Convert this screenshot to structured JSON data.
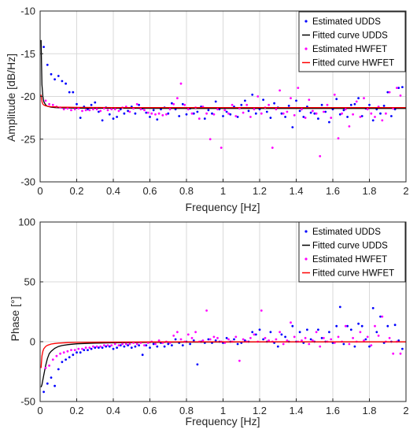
{
  "chart_data": [
    {
      "type": "scatter",
      "xlabel": "Frequency [Hz]",
      "ylabel": "Amplitude [dB/Hz]",
      "xlim": [
        0,
        2
      ],
      "ylim": [
        -30,
        -10
      ],
      "xticks": [
        0,
        0.2,
        0.4,
        0.6,
        0.8,
        1,
        1.2,
        1.4,
        1.6,
        1.8,
        2
      ],
      "yticks": [
        -30,
        -25,
        -20,
        -15,
        -10
      ],
      "grid": true,
      "legend": "top-right",
      "series": [
        {
          "name": "Estimated UDDS",
          "kind": "points",
          "color": "#0000ff",
          "x": [
            0.02,
            0.04,
            0.06,
            0.08,
            0.1,
            0.12,
            0.14,
            0.16,
            0.18,
            0.2,
            0.22,
            0.24,
            0.26,
            0.28,
            0.3,
            0.32,
            0.34,
            0.36,
            0.38,
            0.4,
            0.42,
            0.44,
            0.46,
            0.48,
            0.5,
            0.52,
            0.54,
            0.56,
            0.58,
            0.6,
            0.62,
            0.64,
            0.66,
            0.68,
            0.7,
            0.72,
            0.74,
            0.76,
            0.78,
            0.8,
            0.82,
            0.84,
            0.86,
            0.88,
            0.9,
            0.92,
            0.94,
            0.96,
            0.98,
            1.0,
            1.02,
            1.04,
            1.06,
            1.08,
            1.1,
            1.12,
            1.14,
            1.16,
            1.18,
            1.2,
            1.22,
            1.24,
            1.26,
            1.28,
            1.3,
            1.32,
            1.34,
            1.36,
            1.38,
            1.4,
            1.42,
            1.44,
            1.46,
            1.48,
            1.5,
            1.52,
            1.54,
            1.56,
            1.58,
            1.6,
            1.62,
            1.64,
            1.66,
            1.68,
            1.7,
            1.72,
            1.74,
            1.76,
            1.78,
            1.8,
            1.82,
            1.84,
            1.86,
            1.88,
            1.9,
            1.92,
            1.94,
            1.96,
            1.98
          ],
          "y": [
            -14.2,
            -16.3,
            -17.4,
            -18.0,
            -17.6,
            -18.2,
            -18.5,
            -19.5,
            -19.5,
            -20.9,
            -22.5,
            -21.2,
            -21.5,
            -21.0,
            -20.7,
            -21.8,
            -22.8,
            -21.3,
            -22.1,
            -22.6,
            -22.4,
            -21.5,
            -22.0,
            -21.7,
            -21.2,
            -22.0,
            -21.0,
            -21.4,
            -21.9,
            -22.4,
            -21.6,
            -22.7,
            -21.5,
            -21.3,
            -22.0,
            -20.8,
            -21.5,
            -22.3,
            -20.9,
            -22.1,
            -21.4,
            -22.0,
            -21.8,
            -21.2,
            -22.6,
            -21.6,
            -22.0,
            -20.6,
            -21.5,
            -22.3,
            -21.8,
            -22.1,
            -21.2,
            -22.4,
            -21.0,
            -20.5,
            -21.7,
            -19.8,
            -22.0,
            -21.5,
            -20.4,
            -21.8,
            -22.5,
            -20.8,
            -21.3,
            -22.0,
            -22.4,
            -21.1,
            -23.6,
            -20.5,
            -21.7,
            -22.4,
            -21.2,
            -21.9,
            -22.0,
            -22.6,
            -21.0,
            -21.8,
            -23.0,
            -21.5,
            -20.3,
            -22.1,
            -21.6,
            -22.4,
            -21.0,
            -20.9,
            -20.2,
            -22.3,
            -21.4,
            -21.0,
            -22.8,
            -21.5,
            -22.0,
            -21.1,
            -19.5,
            -22.3,
            -21.5,
            -19.0,
            -18.9
          ],
          "marker": "dot"
        },
        {
          "name": "Fitted curve UDDS",
          "kind": "line",
          "color": "#000000",
          "x": [
            0.005,
            0.01,
            0.015,
            0.02,
            0.03,
            0.04,
            0.06,
            0.08,
            0.1,
            0.15,
            0.2,
            0.3,
            0.4,
            0.6,
            0.8,
            1.0,
            1.2,
            1.4,
            1.6,
            1.8,
            2.0
          ],
          "y": [
            -13.4,
            -18.6,
            -20.0,
            -20.6,
            -21.0,
            -21.15,
            -21.25,
            -21.3,
            -21.32,
            -21.35,
            -21.37,
            -21.38,
            -21.38,
            -21.39,
            -21.4,
            -21.4,
            -21.4,
            -21.4,
            -21.4,
            -21.4,
            -21.4
          ]
        },
        {
          "name": "Estimated HWFET",
          "kind": "points",
          "color": "#ff00ff",
          "x": [
            0.03,
            0.05,
            0.07,
            0.09,
            0.11,
            0.13,
            0.15,
            0.17,
            0.19,
            0.21,
            0.23,
            0.25,
            0.27,
            0.29,
            0.31,
            0.33,
            0.35,
            0.37,
            0.39,
            0.41,
            0.43,
            0.45,
            0.47,
            0.49,
            0.51,
            0.53,
            0.55,
            0.57,
            0.59,
            0.61,
            0.63,
            0.65,
            0.67,
            0.69,
            0.71,
            0.73,
            0.75,
            0.77,
            0.79,
            0.81,
            0.83,
            0.85,
            0.87,
            0.89,
            0.91,
            0.93,
            0.95,
            0.97,
            0.99,
            1.01,
            1.03,
            1.05,
            1.07,
            1.09,
            1.11,
            1.13,
            1.15,
            1.17,
            1.19,
            1.21,
            1.23,
            1.25,
            1.27,
            1.29,
            1.31,
            1.33,
            1.35,
            1.37,
            1.39,
            1.41,
            1.43,
            1.45,
            1.47,
            1.49,
            1.51,
            1.53,
            1.55,
            1.57,
            1.59,
            1.61,
            1.63,
            1.65,
            1.67,
            1.69,
            1.71,
            1.73,
            1.75,
            1.77,
            1.79,
            1.81,
            1.83,
            1.85,
            1.87,
            1.89,
            1.91,
            1.93,
            1.95,
            1.97
          ],
          "y": [
            -20.5,
            -20.9,
            -21.0,
            -21.2,
            -21.3,
            -21.5,
            -21.4,
            -21.6,
            -21.5,
            -21.4,
            -21.7,
            -21.6,
            -21.6,
            -21.5,
            -21.5,
            -21.7,
            -21.4,
            -21.6,
            -21.5,
            -21.5,
            -21.7,
            -21.3,
            -21.2,
            -21.8,
            -21.4,
            -20.9,
            -21.5,
            -21.6,
            -21.9,
            -22.0,
            -22.1,
            -22.0,
            -22.2,
            -22.1,
            -21.5,
            -20.9,
            -20.2,
            -18.5,
            -21.0,
            -21.5,
            -22.0,
            -21.3,
            -22.6,
            -21.2,
            -22.0,
            -25.0,
            -22.1,
            -21.5,
            -26.0,
            -21.6,
            -22.0,
            -21.0,
            -22.3,
            -21.4,
            -21.9,
            -21.0,
            -22.4,
            -21.5,
            -20.0,
            -22.0,
            -21.3,
            -21.0,
            -26.0,
            -21.5,
            -19.3,
            -22.0,
            -21.8,
            -20.2,
            -22.2,
            -19.0,
            -21.5,
            -22.5,
            -20.4,
            -21.7,
            -22.0,
            -27.0,
            -21.8,
            -21.0,
            -22.5,
            -19.8,
            -24.9,
            -22.0,
            -21.5,
            -23.5,
            -22.1,
            -20.6,
            -22.4,
            -20.2,
            -21.5,
            -22.0,
            -22.4,
            -21.2,
            -22.8,
            -22.0,
            -19.5,
            -21.4,
            -19.0,
            -19.9
          ]
        },
        {
          "name": "Fitted curve HWFET",
          "kind": "line",
          "color": "#ff0000",
          "x": [
            0.005,
            0.01,
            0.015,
            0.02,
            0.03,
            0.04,
            0.06,
            0.08,
            0.1,
            0.15,
            0.2,
            0.3,
            0.4,
            0.6,
            0.8,
            1.0,
            1.2,
            1.4,
            1.6,
            1.8,
            2.0
          ],
          "y": [
            -19.8,
            -20.6,
            -20.9,
            -21.0,
            -21.1,
            -21.15,
            -21.2,
            -21.22,
            -21.24,
            -21.26,
            -21.28,
            -21.29,
            -21.3,
            -21.3,
            -21.3,
            -21.3,
            -21.3,
            -21.3,
            -21.3,
            -21.3,
            -21.3
          ]
        }
      ]
    },
    {
      "type": "scatter",
      "xlabel": "Frequency [Hz]",
      "ylabel": "Phase [°]",
      "xlim": [
        0,
        2
      ],
      "ylim": [
        -50,
        100
      ],
      "xticks": [
        0,
        0.2,
        0.4,
        0.6,
        0.8,
        1,
        1.2,
        1.4,
        1.6,
        1.8,
        2
      ],
      "yticks": [
        -50,
        0,
        50,
        100
      ],
      "grid": true,
      "legend": "top-right",
      "series": [
        {
          "name": "Estimated UDDS",
          "kind": "points",
          "color": "#0000ff",
          "x": [
            0.02,
            0.04,
            0.06,
            0.08,
            0.1,
            0.12,
            0.14,
            0.16,
            0.18,
            0.2,
            0.22,
            0.24,
            0.26,
            0.28,
            0.3,
            0.32,
            0.34,
            0.36,
            0.38,
            0.4,
            0.42,
            0.44,
            0.46,
            0.48,
            0.5,
            0.52,
            0.54,
            0.56,
            0.58,
            0.6,
            0.62,
            0.64,
            0.66,
            0.68,
            0.7,
            0.72,
            0.74,
            0.76,
            0.78,
            0.8,
            0.82,
            0.84,
            0.86,
            0.88,
            0.9,
            0.92,
            0.94,
            0.96,
            0.98,
            1.0,
            1.02,
            1.04,
            1.06,
            1.08,
            1.1,
            1.12,
            1.14,
            1.16,
            1.18,
            1.2,
            1.22,
            1.24,
            1.26,
            1.28,
            1.3,
            1.32,
            1.34,
            1.36,
            1.38,
            1.4,
            1.42,
            1.44,
            1.46,
            1.48,
            1.5,
            1.52,
            1.54,
            1.56,
            1.58,
            1.6,
            1.62,
            1.64,
            1.66,
            1.68,
            1.7,
            1.72,
            1.74,
            1.76,
            1.78,
            1.8,
            1.82,
            1.84,
            1.86,
            1.88,
            1.9,
            1.92,
            1.94,
            1.96,
            1.98
          ],
          "y": [
            -42,
            -35,
            -30,
            -37,
            -23,
            -17,
            -15,
            -13,
            -11,
            -9,
            -9,
            -7,
            -7,
            -6,
            -5,
            -5,
            -5,
            -4,
            -4,
            -6,
            -5,
            -3,
            -4,
            -3,
            -5,
            -4,
            -3,
            -11,
            -3,
            -5,
            -2,
            -4,
            -1,
            -4,
            -2,
            -3,
            2,
            -1,
            -3,
            0,
            -2,
            1,
            -19,
            0,
            -1,
            2,
            -1,
            1,
            0,
            -1,
            3,
            0,
            2,
            -2,
            -1,
            1,
            0,
            8,
            6,
            10,
            2,
            0,
            8,
            -1,
            -4,
            6,
            4,
            0,
            13,
            0,
            8,
            -1,
            10,
            2,
            0,
            10,
            3,
            0,
            8,
            -1,
            13,
            29,
            -2,
            13,
            10,
            -4,
            15,
            13,
            2,
            -4,
            28,
            8,
            21,
            -1,
            13,
            0,
            14,
            1,
            -6
          ]
        },
        {
          "name": "Fitted curve UDDS",
          "kind": "line",
          "color": "#000000",
          "x": [
            0.005,
            0.01,
            0.02,
            0.03,
            0.04,
            0.05,
            0.06,
            0.08,
            0.1,
            0.12,
            0.15,
            0.2,
            0.3,
            0.4,
            0.6,
            0.8,
            1.0,
            1.2,
            1.4,
            1.6,
            1.8,
            2.0
          ],
          "y": [
            -38,
            -36,
            -28,
            -20,
            -14,
            -10,
            -8,
            -5.5,
            -4,
            -3.2,
            -2.5,
            -1.8,
            -1.2,
            -0.9,
            -0.6,
            -0.4,
            -0.3,
            -0.2,
            -0.15,
            -0.1,
            -0.1,
            -0.1
          ]
        },
        {
          "name": "Estimated HWFET",
          "kind": "points",
          "color": "#ff00ff",
          "x": [
            0.03,
            0.05,
            0.07,
            0.09,
            0.11,
            0.13,
            0.15,
            0.17,
            0.19,
            0.21,
            0.23,
            0.25,
            0.27,
            0.29,
            0.31,
            0.33,
            0.35,
            0.37,
            0.39,
            0.41,
            0.43,
            0.45,
            0.47,
            0.49,
            0.51,
            0.53,
            0.55,
            0.57,
            0.59,
            0.61,
            0.63,
            0.65,
            0.67,
            0.69,
            0.71,
            0.73,
            0.75,
            0.77,
            0.79,
            0.81,
            0.83,
            0.85,
            0.87,
            0.89,
            0.91,
            0.93,
            0.95,
            0.97,
            0.99,
            1.01,
            1.03,
            1.05,
            1.07,
            1.09,
            1.11,
            1.13,
            1.15,
            1.17,
            1.19,
            1.21,
            1.23,
            1.25,
            1.27,
            1.29,
            1.31,
            1.33,
            1.35,
            1.37,
            1.39,
            1.41,
            1.43,
            1.45,
            1.47,
            1.49,
            1.51,
            1.53,
            1.55,
            1.57,
            1.59,
            1.61,
            1.63,
            1.65,
            1.67,
            1.69,
            1.71,
            1.73,
            1.75,
            1.77,
            1.79,
            1.81,
            1.83,
            1.85,
            1.87,
            1.89,
            1.91,
            1.93,
            1.95,
            1.97
          ],
          "y": [
            -22,
            -20,
            -15,
            -12,
            -10,
            -9,
            -8,
            -7,
            -7,
            -6,
            -6,
            -5,
            -5,
            -4,
            -4,
            -4,
            -3,
            -3,
            -3,
            -2,
            -3,
            -2,
            -2,
            -2,
            -1,
            -2,
            -1,
            -3,
            -1,
            0,
            -2,
            1,
            -1,
            0,
            -1,
            5,
            8,
            2,
            0,
            6,
            3,
            8,
            0,
            1,
            26,
            2,
            4,
            3,
            0,
            -1,
            2,
            0,
            4,
            -16,
            2,
            0,
            3,
            6,
            0,
            26,
            3,
            1,
            0,
            2,
            8,
            -2,
            1,
            16,
            4,
            0,
            1,
            3,
            -2,
            1,
            8,
            -4,
            3,
            0,
            2,
            -1,
            4,
            0,
            13,
            -2,
            3,
            0,
            8,
            1,
            4,
            -3,
            13,
            5,
            21,
            0,
            3,
            -10,
            0,
            -10
          ]
        },
        {
          "name": "Fitted curve HWFET",
          "kind": "line",
          "color": "#ff0000",
          "x": [
            0.005,
            0.01,
            0.015,
            0.02,
            0.03,
            0.04,
            0.06,
            0.08,
            0.1,
            0.15,
            0.2,
            0.3,
            0.4,
            0.6,
            0.8,
            1.0,
            1.2,
            1.4,
            1.6,
            1.8,
            2.0
          ],
          "y": [
            -22,
            -12,
            -8,
            -6,
            -4,
            -3,
            -2,
            -1.5,
            -1.2,
            -0.8,
            -0.6,
            -0.4,
            -0.3,
            -0.2,
            -0.15,
            -0.1,
            -0.1,
            -0.1,
            -0.1,
            -0.1,
            -0.1
          ]
        }
      ]
    }
  ]
}
